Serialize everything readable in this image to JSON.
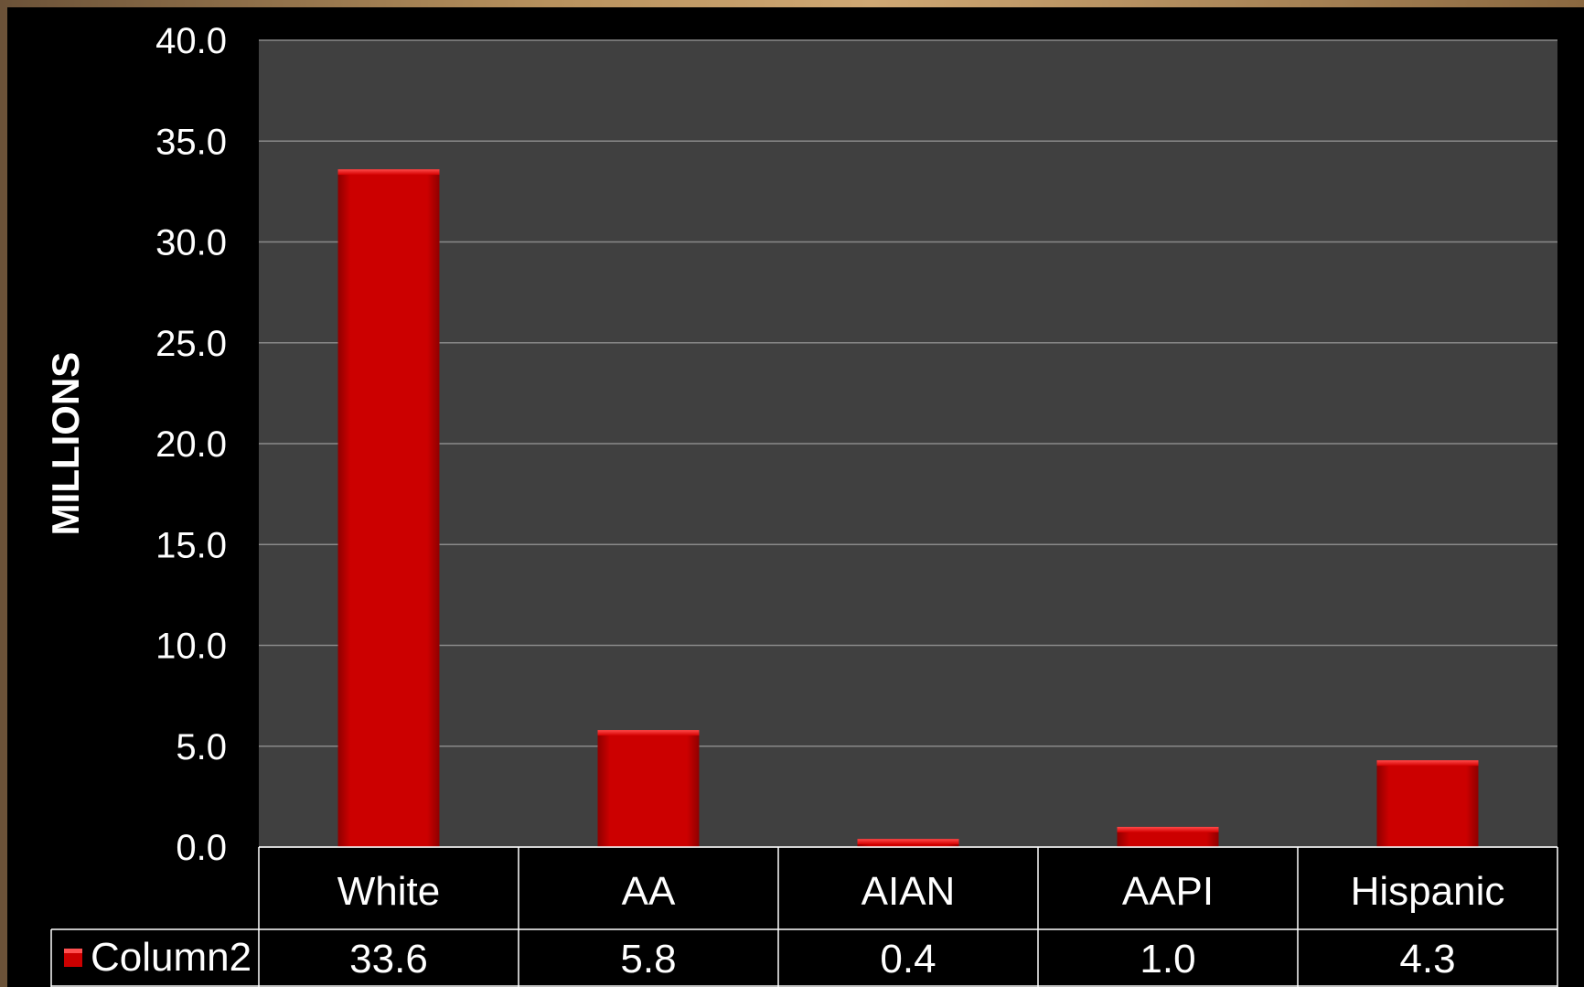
{
  "chart_data": {
    "type": "bar",
    "categories": [
      "White",
      "AA",
      "AIAN",
      "AAPI",
      "Hispanic"
    ],
    "series": [
      {
        "name": "Column2",
        "values": [
          33.6,
          5.8,
          0.4,
          1.0,
          4.3
        ]
      }
    ],
    "value_labels": [
      "33.6",
      "5.8",
      "0.4",
      "1.0",
      "4.3"
    ],
    "ylabel": "MILLIONS",
    "xlabel": "",
    "ylim": [
      0,
      40
    ],
    "yticks": [
      "0.0",
      "5.0",
      "10.0",
      "15.0",
      "20.0",
      "25.0",
      "30.0",
      "35.0",
      "40.0"
    ],
    "grid": true,
    "legend": "data-table-left",
    "data_table": true,
    "colors": {
      "bar": "#cc0000",
      "plot_bg": "#404040",
      "background": "#000000",
      "gridline": "#8a8a8a",
      "text": "#ffffff"
    }
  }
}
